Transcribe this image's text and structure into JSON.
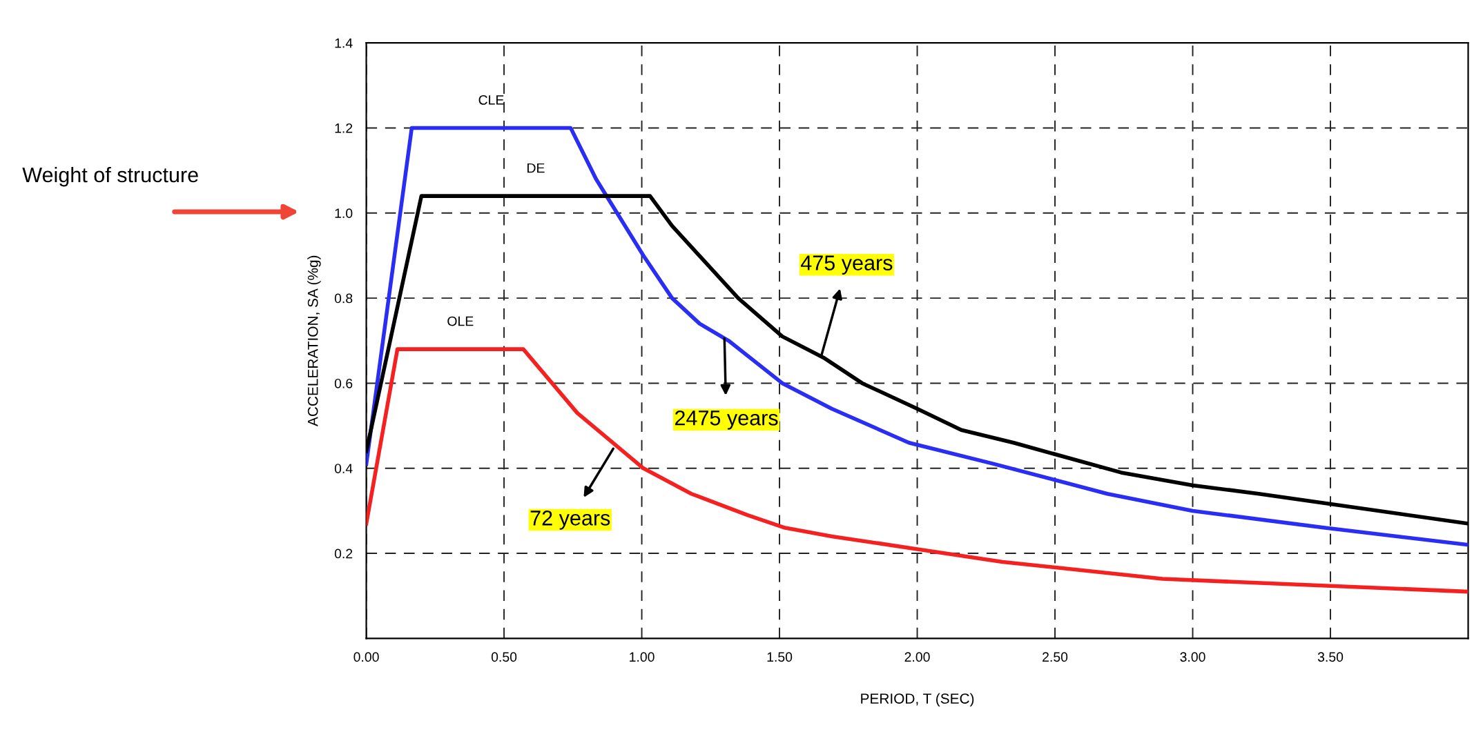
{
  "chart_data": {
    "type": "line",
    "xlabel": "PERIOD, T (SEC)",
    "ylabel": "ACCELERATION, SA (%g)",
    "xlim": [
      0,
      4.0
    ],
    "xticks": [
      {
        "value": 0,
        "label": "0.00"
      },
      {
        "value": 0.5,
        "label": "0.50"
      },
      {
        "value": 1.0,
        "label": "1.00"
      },
      {
        "value": 1.5,
        "label": "1.50"
      },
      {
        "value": 2.0,
        "label": "2.00"
      },
      {
        "value": 2.5,
        "label": "2.50"
      },
      {
        "value": 3.0,
        "label": "3.00"
      },
      {
        "value": 3.5,
        "label": "3.50"
      }
    ],
    "ylim": [
      0,
      1.4
    ],
    "yticks": [
      0.2,
      0.4,
      0.6,
      0.8,
      {
        "value": 1.0,
        "label": "1.0"
      },
      1.2,
      1.4
    ],
    "grid": true,
    "legend": false,
    "marker": "none",
    "line_style": "solid",
    "series": [
      {
        "name": "CLE",
        "color": "#2a2ef5",
        "x": [
          0,
          0.165,
          0.742,
          0.834,
          1.006,
          1.11,
          1.21,
          1.315,
          1.51,
          1.69,
          1.97,
          2.28,
          2.69,
          3.0,
          3.48,
          4.0
        ],
        "values": [
          0.41,
          1.2,
          1.2,
          1.08,
          0.9,
          0.8,
          0.74,
          0.7,
          0.6,
          0.54,
          0.46,
          0.41,
          0.34,
          0.3,
          0.26,
          0.22
        ]
      },
      {
        "name": "DE",
        "color": "#000000",
        "x": [
          0,
          0.2,
          1.03,
          1.11,
          1.35,
          1.51,
          1.66,
          1.8,
          2.0,
          2.16,
          2.35,
          2.74,
          3.0,
          3.24,
          4.0
        ],
        "values": [
          0.44,
          1.04,
          1.04,
          0.97,
          0.8,
          0.71,
          0.66,
          0.6,
          0.54,
          0.49,
          0.46,
          0.39,
          0.36,
          0.34,
          0.27
        ]
      },
      {
        "name": "OLE",
        "color": "#f52020",
        "x": [
          0,
          0.113,
          0.57,
          0.766,
          1.006,
          1.18,
          1.384,
          1.52,
          1.69,
          2.0,
          2.31,
          2.89,
          4.0
        ],
        "values": [
          0.27,
          0.68,
          0.68,
          0.53,
          0.4,
          0.34,
          0.29,
          0.26,
          0.24,
          0.21,
          0.18,
          0.14,
          0.11
        ]
      }
    ],
    "annotations": [
      {
        "text": "475 years",
        "x": 1.65,
        "y": 0.66
      },
      {
        "text": "2475 years",
        "x": 1.3,
        "y": 0.71
      },
      {
        "text": "72 years",
        "x": 0.9,
        "y": 0.45
      },
      "Weight of structure"
    ]
  }
}
